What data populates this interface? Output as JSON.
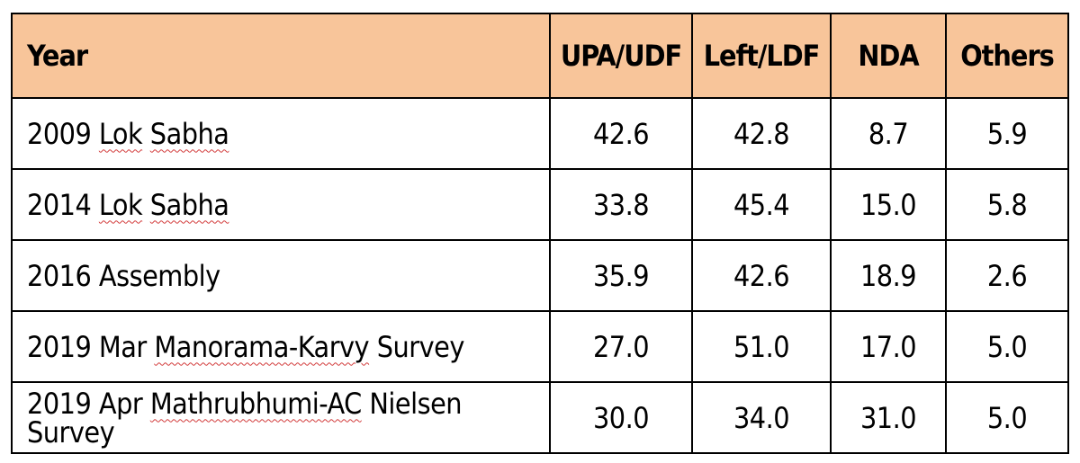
{
  "header": {
    "year": "Year",
    "upa_udf": "UPA/UDF",
    "left_ldf": "Left/LDF",
    "nda": "NDA",
    "others": "Others"
  },
  "rows": [
    {
      "year_prefix": "2009",
      "year_flagged_1": "Lok",
      "year_flagged_2": "Sabha",
      "year_suffix": "",
      "upa_udf": "42.6",
      "left_ldf": "42.8",
      "nda": "8.7",
      "others": "5.9"
    },
    {
      "year_prefix": "2014",
      "year_flagged_1": "Lok",
      "year_flagged_2": "Sabha",
      "year_suffix": "",
      "upa_udf": "33.8",
      "left_ldf": "45.4",
      "nda": "15.0",
      "others": "5.8"
    },
    {
      "year_prefix": "2016 Assembly",
      "year_flagged_1": "",
      "year_flagged_2": "",
      "year_suffix": "",
      "upa_udf": "35.9",
      "left_ldf": "42.6",
      "nda": "18.9",
      "others": "2.6"
    },
    {
      "year_prefix": "2019 Mar",
      "year_flagged_1": "Manorama-Karvy",
      "year_flagged_2": "",
      "year_suffix": "Survey",
      "upa_udf": "27.0",
      "left_ldf": "51.0",
      "nda": "17.0",
      "others": "5.0"
    },
    {
      "year_prefix": "2019 Apr",
      "year_flagged_1": "Mathrubhumi-AC",
      "year_flagged_2": "",
      "year_suffix": "Nielsen Survey",
      "upa_udf": "30.0",
      "left_ldf": "34.0",
      "nda": "31.0",
      "others": "5.0"
    }
  ],
  "colors": {
    "header_bg": "#f8c59a",
    "border": "#000000",
    "spellcheck_underline": "#d23b3b"
  }
}
